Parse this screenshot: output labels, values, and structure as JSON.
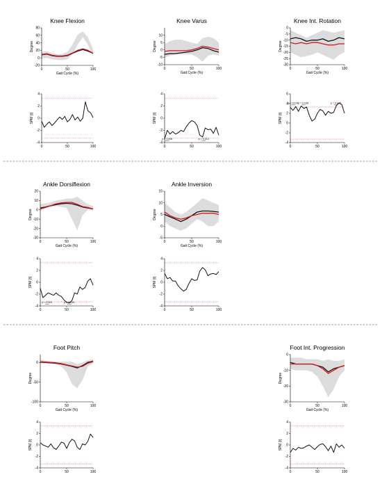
{
  "chart_data": [
    {
      "type": "line",
      "kind": "kinematic",
      "title": "Knee Flexion",
      "xlabel": "Gait Cycle (%)",
      "ylabel": "Degree",
      "xlim": [
        0,
        100
      ],
      "xticks": [
        0,
        50,
        100
      ],
      "ylim": [
        -20,
        80
      ],
      "yticks": [
        -20,
        0,
        20,
        40,
        60,
        80
      ],
      "x": [
        0,
        10,
        20,
        30,
        40,
        50,
        60,
        70,
        80,
        90,
        100
      ],
      "band": {
        "lower": [
          -2,
          0,
          -4,
          -6,
          -6,
          -4,
          10,
          35,
          55,
          35,
          3
        ],
        "upper": [
          16,
          18,
          12,
          10,
          10,
          16,
          35,
          62,
          70,
          55,
          22
        ]
      },
      "series": [
        {
          "color": "#111111",
          "values": [
            8,
            10,
            6,
            4,
            4,
            6,
            12,
            18,
            22,
            18,
            12
          ]
        },
        {
          "color": "#d01818",
          "values": [
            9,
            11,
            7,
            5,
            5,
            7,
            13,
            20,
            24,
            20,
            12
          ]
        }
      ]
    },
    {
      "type": "line",
      "kind": "spm",
      "xlabel": "",
      "ylabel": "SPM {t}",
      "xlim": [
        0,
        100
      ],
      "xticks": [
        0,
        50,
        100
      ],
      "ylim": [
        -4,
        4
      ],
      "yticks": [
        -4,
        -2,
        0,
        2,
        4
      ],
      "threshold": 3.3,
      "x": [
        0,
        5,
        10,
        15,
        20,
        25,
        30,
        35,
        40,
        45,
        50,
        55,
        60,
        65,
        70,
        75,
        80,
        85,
        90,
        95,
        100
      ],
      "series": [
        {
          "color": "#111111",
          "values": [
            -0.5,
            -1.5,
            -1.0,
            -0.6,
            -1.2,
            -0.8,
            -0.3,
            0.2,
            -0.2,
            0.3,
            -0.6,
            -0.2,
            0.6,
            -0.3,
            0.2,
            -0.5,
            0.0,
            2.7,
            1.2,
            0.9,
            0.1
          ]
        }
      ],
      "clusters": []
    },
    {
      "type": "line",
      "kind": "kinematic",
      "title": "Knee Varus",
      "xlabel": "Gait Cycle (%)",
      "ylabel": "Degree",
      "xlim": [
        0,
        100
      ],
      "xticks": [
        0,
        50,
        100
      ],
      "ylim": [
        -10,
        15
      ],
      "yticks": [
        -10,
        -5,
        0,
        5,
        10
      ],
      "x": [
        0,
        10,
        20,
        30,
        40,
        50,
        60,
        70,
        80,
        90,
        100
      ],
      "band": {
        "lower": [
          -5,
          -4,
          -3,
          -3,
          -3,
          -3,
          -5,
          -8,
          -4,
          -3,
          -4
        ],
        "upper": [
          4,
          6,
          7,
          7,
          6,
          5,
          4,
          8,
          9,
          8,
          5
        ]
      },
      "series": [
        {
          "color": "#111111",
          "values": [
            -3,
            -2.5,
            -2.5,
            -2,
            -1.5,
            -1,
            0,
            1.5,
            1,
            -0.5,
            -1.5
          ]
        },
        {
          "color": "#d01818",
          "values": [
            -1,
            -0.5,
            -0.5,
            -0.5,
            -0.5,
            0,
            1,
            2.5,
            2,
            1,
            0
          ]
        }
      ]
    },
    {
      "type": "line",
      "kind": "spm",
      "xlabel": "",
      "ylabel": "SPM {t}",
      "xlim": [
        0,
        100
      ],
      "xticks": [
        0,
        50,
        100
      ],
      "ylim": [
        -4,
        4
      ],
      "yticks": [
        -4,
        -2,
        0,
        2,
        4
      ],
      "threshold": 3.3,
      "x": [
        0,
        5,
        10,
        15,
        20,
        25,
        30,
        35,
        40,
        45,
        50,
        55,
        60,
        65,
        70,
        75,
        80,
        85,
        90,
        95,
        100
      ],
      "series": [
        {
          "color": "#111111",
          "values": [
            -3.4,
            -2.0,
            -2.6,
            -2.2,
            -2.6,
            -2.4,
            -2.0,
            -2.2,
            -1.4,
            -0.8,
            -0.4,
            -0.6,
            -1.2,
            -2.8,
            -3.1,
            -1.6,
            -1.9,
            -1.8,
            -2.5,
            -1.5,
            -2.8
          ]
        }
      ],
      "clusters": [
        {
          "text": "p = 0.006",
          "x": 5
        },
        {
          "text": "p = 0.013",
          "x": 72
        }
      ]
    },
    {
      "type": "line",
      "kind": "kinematic",
      "title": "Knee Int. Rotation",
      "xlabel": "Gait Cycle (%)",
      "ylabel": "Degree",
      "xlim": [
        0,
        100
      ],
      "xticks": [
        0,
        50,
        100
      ],
      "ylim": [
        -30,
        0
      ],
      "yticks": [
        -30,
        -25,
        -20,
        -15,
        -10,
        -5,
        0
      ],
      "x": [
        0,
        10,
        20,
        30,
        40,
        50,
        60,
        70,
        80,
        90,
        100
      ],
      "band": {
        "lower": [
          -20,
          -22,
          -24,
          -23,
          -22,
          -20,
          -22,
          -24,
          -26,
          -22,
          -20
        ],
        "upper": [
          -2,
          -4,
          -6,
          -8,
          -6,
          -4,
          -2,
          -3,
          -4,
          -3,
          -2
        ]
      },
      "series": [
        {
          "color": "#111111",
          "values": [
            -9,
            -8,
            -9,
            -11,
            -10,
            -10,
            -9,
            -11,
            -10,
            -8,
            -9
          ]
        },
        {
          "color": "#d01818",
          "values": [
            -12,
            -13,
            -12,
            -13,
            -12,
            -12,
            -13,
            -14,
            -14,
            -13,
            -13
          ]
        }
      ]
    },
    {
      "type": "line",
      "kind": "spm",
      "xlabel": "",
      "ylabel": "SPM {t}",
      "xlim": [
        0,
        100
      ],
      "xticks": [
        0,
        50,
        100
      ],
      "ylim": [
        -4,
        6
      ],
      "yticks": [
        -4,
        -2,
        0,
        2,
        4,
        6
      ],
      "threshold_upper": 3.3,
      "threshold_lower": -3.3,
      "x": [
        0,
        5,
        10,
        15,
        20,
        25,
        30,
        35,
        40,
        45,
        50,
        55,
        60,
        65,
        70,
        75,
        80,
        85,
        90,
        95,
        100
      ],
      "series": [
        {
          "color": "#111111",
          "values": [
            3.2,
            2.6,
            3.4,
            2.4,
            3.5,
            3.0,
            3.3,
            1.6,
            0.4,
            0.8,
            2.0,
            2.8,
            2.5,
            1.6,
            2.4,
            2.0,
            2.2,
            3.6,
            4.1,
            3.8,
            2.0
          ]
        }
      ],
      "clusters": [
        {
          "text": "p = 0.014",
          "x": 5
        },
        {
          "text": "p = 0.036",
          "x": 24
        },
        {
          "text": "p = 0.045",
          "x": 84
        }
      ]
    },
    {
      "type": "line",
      "kind": "kinematic",
      "title": "Ankle Dorsiflexion",
      "xlabel": "Gait Cycle (%)",
      "ylabel": "Degree",
      "xlim": [
        0,
        100
      ],
      "xticks": [
        0,
        50,
        100
      ],
      "ylim": [
        -30,
        20
      ],
      "yticks": [
        -30,
        -20,
        -10,
        0,
        10,
        20
      ],
      "x": [
        0,
        10,
        20,
        30,
        40,
        50,
        60,
        70,
        80,
        90,
        100
      ],
      "band": {
        "lower": [
          -1,
          2,
          3,
          4,
          3,
          2,
          -10,
          -22,
          -6,
          0,
          -1
        ],
        "upper": [
          6,
          7,
          8,
          10,
          11,
          12,
          12,
          14,
          10,
          6,
          4
        ]
      },
      "series": [
        {
          "color": "#111111",
          "values": [
            2,
            3,
            4.5,
            5.5,
            6.5,
            7,
            6.5,
            5,
            3,
            2,
            1
          ]
        },
        {
          "color": "#d01818",
          "values": [
            1,
            2.5,
            4.5,
            6.5,
            7.5,
            8,
            8,
            6,
            3.5,
            2.5,
            1
          ]
        }
      ]
    },
    {
      "type": "line",
      "kind": "spm",
      "xlabel": "",
      "ylabel": "SPM {t}",
      "xlim": [
        0,
        100
      ],
      "xticks": [
        0,
        50,
        100
      ],
      "ylim": [
        -4,
        4
      ],
      "yticks": [
        -4,
        -2,
        0,
        2,
        4
      ],
      "threshold": 3.3,
      "x": [
        0,
        5,
        10,
        15,
        20,
        25,
        30,
        35,
        40,
        45,
        50,
        55,
        60,
        65,
        70,
        75,
        80,
        85,
        90,
        95,
        100
      ],
      "series": [
        {
          "color": "#111111",
          "values": [
            -1.0,
            -2.6,
            -2.2,
            -1.8,
            -2.0,
            -2.2,
            -1.8,
            -2.2,
            -2.4,
            -3.0,
            -3.4,
            -3.5,
            -3.1,
            -1.8,
            -2.0,
            -0.8,
            -1.2,
            -0.9,
            0.2,
            0.6,
            -0.5
          ]
        }
      ],
      "clusters": [
        {
          "text": "p < 0.001",
          "x": 13
        },
        {
          "text": "p = 0.016",
          "x": 55
        }
      ]
    },
    {
      "type": "line",
      "kind": "kinematic",
      "title": "Ankle Inversion",
      "xlabel": "Gait Cycle (%)",
      "ylabel": "Degree",
      "xlim": [
        0,
        100
      ],
      "xticks": [
        0,
        50,
        100
      ],
      "ylim": [
        -5,
        15
      ],
      "yticks": [
        -5,
        0,
        5,
        10,
        15
      ],
      "x": [
        0,
        10,
        20,
        30,
        40,
        50,
        60,
        70,
        80,
        90,
        100
      ],
      "band": {
        "lower": [
          2,
          0,
          -1,
          -2,
          -1,
          1,
          3,
          2,
          0,
          0,
          2
        ],
        "upper": [
          10,
          8,
          6,
          5,
          6,
          8,
          10,
          12,
          11,
          10,
          9
        ]
      },
      "series": [
        {
          "color": "#111111",
          "values": [
            5,
            4,
            3,
            2,
            3,
            4.5,
            6,
            6.5,
            6.5,
            6.3,
            6
          ]
        },
        {
          "color": "#d01818",
          "values": [
            6,
            4.5,
            3.5,
            3,
            3.5,
            4.5,
            5,
            5.5,
            5.5,
            5.5,
            5
          ]
        }
      ]
    },
    {
      "type": "line",
      "kind": "spm",
      "xlabel": "",
      "ylabel": "SPM {t}",
      "xlim": [
        0,
        100
      ],
      "xticks": [
        0,
        50,
        100
      ],
      "ylim": [
        -4,
        4
      ],
      "yticks": [
        -4,
        -2,
        0,
        2,
        4
      ],
      "threshold": 3.3,
      "x": [
        0,
        5,
        10,
        15,
        20,
        25,
        30,
        35,
        40,
        45,
        50,
        55,
        60,
        65,
        70,
        75,
        80,
        85,
        90,
        95,
        100
      ],
      "series": [
        {
          "color": "#111111",
          "values": [
            1.5,
            0.6,
            0.8,
            0.2,
            0.2,
            -0.6,
            -1.1,
            -1.5,
            -1.2,
            -0.2,
            0.6,
            0.3,
            0.4,
            1.9,
            2.5,
            2.1,
            1.1,
            1.4,
            1.5,
            1.3,
            1.8
          ]
        }
      ],
      "clusters": []
    },
    {
      "type": "line",
      "kind": "kinematic",
      "title": "Foot Pitch",
      "xlabel": "Gait Cycle (%)",
      "ylabel": "Degree",
      "xlim": [
        0,
        100
      ],
      "xticks": [
        0,
        50,
        100
      ],
      "ylim": [
        -100,
        20
      ],
      "yticks": [
        -100,
        -50,
        0
      ],
      "x": [
        0,
        10,
        20,
        30,
        40,
        50,
        60,
        70,
        80,
        90,
        100
      ],
      "band": {
        "lower": [
          -3,
          -3,
          -4,
          -5,
          -10,
          -25,
          -55,
          -65,
          -45,
          -10,
          -3
        ],
        "upper": [
          6,
          5,
          3,
          2,
          2,
          2,
          2,
          -4,
          0,
          6,
          8
        ]
      },
      "series": [
        {
          "color": "#111111",
          "values": [
            1,
            0,
            -1,
            -2,
            -4,
            -7,
            -10,
            -14,
            -8,
            0,
            3
          ]
        },
        {
          "color": "#d01818",
          "values": [
            2,
            1,
            0,
            -1,
            -3,
            -6,
            -9,
            -12,
            -10,
            -2,
            2
          ]
        }
      ]
    },
    {
      "type": "line",
      "kind": "spm",
      "xlabel": "",
      "ylabel": "SPM {t}",
      "xlim": [
        0,
        100
      ],
      "xticks": [
        0,
        50,
        100
      ],
      "ylim": [
        -4,
        4
      ],
      "yticks": [
        -4,
        -2,
        0,
        2,
        4
      ],
      "threshold": 3.3,
      "x": [
        0,
        5,
        10,
        15,
        20,
        25,
        30,
        35,
        40,
        45,
        50,
        55,
        60,
        65,
        70,
        75,
        80,
        85,
        90,
        95,
        100
      ],
      "series": [
        {
          "color": "#111111",
          "values": [
            0.4,
            0.0,
            -0.2,
            -0.4,
            0.2,
            -0.5,
            -0.8,
            -0.2,
            0.5,
            0.3,
            -0.6,
            0.4,
            1.0,
            0.7,
            -0.4,
            -0.8,
            0.2,
            0.0,
            0.6,
            1.9,
            1.3
          ]
        }
      ],
      "clusters": []
    },
    {
      "type": "line",
      "kind": "kinematic",
      "title": "Foot Int. Progression",
      "xlabel": "Gait Cycle (%)",
      "ylabel": "Degree",
      "xlim": [
        0,
        100
      ],
      "xticks": [
        0,
        50,
        100
      ],
      "ylim": [
        -30,
        0
      ],
      "yticks": [
        -30,
        -20,
        -10,
        0
      ],
      "x": [
        0,
        10,
        20,
        30,
        40,
        50,
        60,
        70,
        80,
        90,
        100
      ],
      "band": {
        "lower": [
          -9,
          -10,
          -10,
          -10,
          -11,
          -14,
          -20,
          -27,
          -22,
          -14,
          -10
        ],
        "upper": [
          -2,
          -2,
          -2,
          -3,
          -3,
          -3,
          -4,
          -3,
          -4,
          -4,
          -3
        ]
      },
      "series": [
        {
          "color": "#111111",
          "values": [
            -5,
            -6,
            -6,
            -6,
            -6,
            -7,
            -8,
            -11,
            -9,
            -8,
            -7
          ]
        },
        {
          "color": "#d01818",
          "values": [
            -6,
            -6,
            -6,
            -6,
            -6,
            -7,
            -9,
            -12,
            -10,
            -8,
            -7
          ]
        }
      ]
    },
    {
      "type": "line",
      "kind": "spm",
      "xlabel": "",
      "ylabel": "SPM {t}",
      "xlim": [
        0,
        100
      ],
      "xticks": [
        0,
        50,
        100
      ],
      "ylim": [
        -4,
        4
      ],
      "yticks": [
        -4,
        -2,
        0,
        2,
        4
      ],
      "threshold": 3.3,
      "x": [
        0,
        5,
        10,
        15,
        20,
        25,
        30,
        35,
        40,
        45,
        50,
        55,
        60,
        65,
        70,
        75,
        80,
        85,
        90,
        95,
        100
      ],
      "series": [
        {
          "color": "#111111",
          "values": [
            -1.3,
            -0.6,
            -0.9,
            -0.4,
            -0.6,
            -0.5,
            -0.2,
            0.0,
            -0.4,
            -0.8,
            -0.3,
            0.1,
            0.2,
            -0.3,
            -1.0,
            -0.2,
            -1.3,
            0.2,
            -0.4,
            0.0,
            -0.6
          ]
        }
      ],
      "clusters": []
    }
  ]
}
